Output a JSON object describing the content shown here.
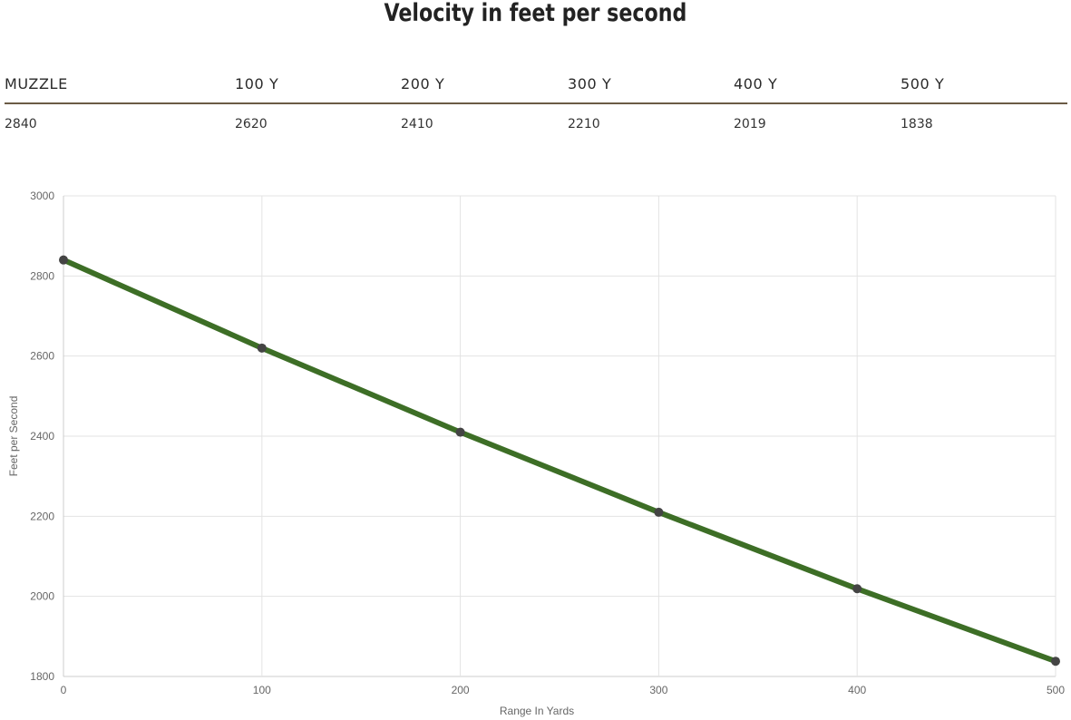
{
  "page": {
    "title": "Velocity in feet per second"
  },
  "table": {
    "headers": [
      "MUZZLE",
      "100 Y",
      "200 Y",
      "300 Y",
      "400 Y",
      "500 Y"
    ],
    "values": [
      "2840",
      "2620",
      "2410",
      "2210",
      "2019",
      "1838"
    ]
  },
  "chart_data": {
    "type": "line",
    "title": "",
    "xlabel": "Range In Yards",
    "ylabel": "Feet per Second",
    "x": [
      0,
      100,
      200,
      300,
      400,
      500
    ],
    "series": [
      {
        "values": [
          2840,
          2620,
          2410,
          2210,
          2019,
          1838
        ]
      }
    ],
    "xlim": [
      0,
      500
    ],
    "ylim": [
      1800,
      3000
    ],
    "xticks": [
      0,
      100,
      200,
      300,
      400,
      500
    ],
    "yticks": [
      1800,
      2000,
      2200,
      2400,
      2600,
      2800,
      3000
    ],
    "grid": true,
    "line_color": "#3d6e26",
    "marker_color": "#444444",
    "grid_color": "#e3e3e3"
  }
}
